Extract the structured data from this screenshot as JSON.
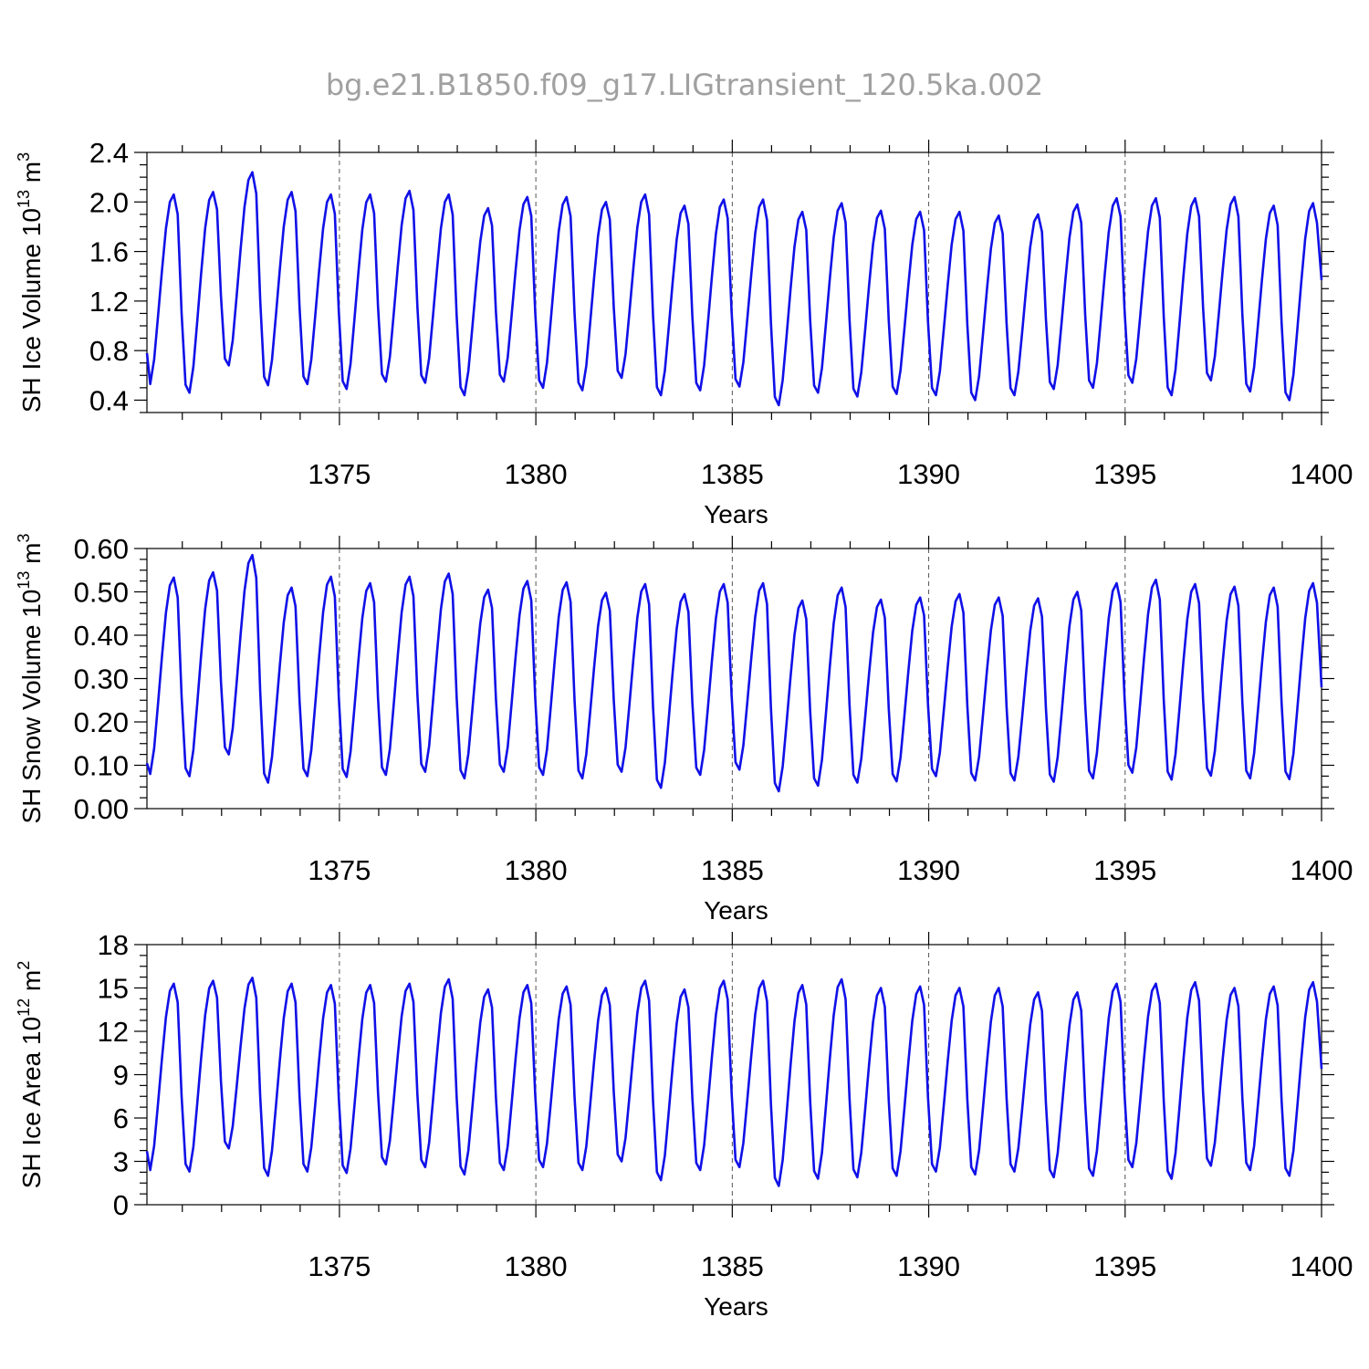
{
  "title": "bg.e21.B1850.f09_g17.LIGtransient_120.5ka.002",
  "series_color": "#1010e8",
  "chart_data": [
    {
      "type": "line",
      "ylabel_main": "SH Ice Volume 10",
      "ylabel_exp": "13",
      "ylabel_unit": " m",
      "ylabel_unit_exp": "3",
      "xlabel": "Years",
      "xlim": [
        1370.1,
        1400.0
      ],
      "ylim": [
        0.3,
        2.4
      ],
      "yticks": [
        0.4,
        0.8,
        1.2,
        1.6,
        2.0,
        2.4
      ],
      "ytick_labels": [
        "0.4",
        "0.8",
        "1.2",
        "1.6",
        "2.0",
        "2.4"
      ],
      "xticks": [
        1375,
        1380,
        1385,
        1390,
        1395,
        1400
      ],
      "xtick_labels": [
        "1375",
        "1380",
        "1385",
        "1390",
        "1395",
        "1400"
      ],
      "grid_x": [
        1375,
        1380,
        1385,
        1390,
        1395
      ],
      "start_value": 0.78,
      "end_value": 1.37,
      "maxima": [
        2.06,
        2.08,
        2.24,
        2.08,
        2.06,
        2.06,
        2.09,
        2.06,
        1.95,
        2.04,
        2.04,
        2.0,
        2.06,
        1.97,
        2.02,
        2.02,
        1.92,
        1.99,
        1.93,
        1.92,
        1.92,
        1.89,
        1.9,
        1.98,
        2.03,
        2.03,
        2.03,
        2.04,
        1.97,
        1.99
      ],
      "minima": [
        0.53,
        0.46,
        0.68,
        0.52,
        0.53,
        0.49,
        0.55,
        0.54,
        0.44,
        0.55,
        0.5,
        0.48,
        0.58,
        0.44,
        0.48,
        0.51,
        0.36,
        0.46,
        0.43,
        0.45,
        0.44,
        0.4,
        0.44,
        0.49,
        0.5,
        0.54,
        0.44,
        0.56,
        0.47,
        0.4
      ]
    },
    {
      "type": "line",
      "ylabel_main": "SH Snow Volume 10",
      "ylabel_exp": "13",
      "ylabel_unit": " m",
      "ylabel_unit_exp": "3",
      "xlabel": "Years",
      "xlim": [
        1370.1,
        1400.0
      ],
      "ylim": [
        0.0,
        0.6
      ],
      "yticks": [
        0.0,
        0.1,
        0.2,
        0.3,
        0.4,
        0.5,
        0.6
      ],
      "ytick_labels": [
        "0.00",
        "0.10",
        "0.20",
        "0.30",
        "0.40",
        "0.50",
        "0.60"
      ],
      "xticks": [
        1375,
        1380,
        1385,
        1390,
        1395,
        1400
      ],
      "xtick_labels": [
        "1375",
        "1380",
        "1385",
        "1390",
        "1395",
        "1400"
      ],
      "grid_x": [
        1375,
        1380,
        1385,
        1390,
        1395
      ],
      "start_value": 0.105,
      "end_value": 0.28,
      "maxima": [
        0.533,
        0.545,
        0.585,
        0.51,
        0.535,
        0.52,
        0.535,
        0.542,
        0.505,
        0.525,
        0.522,
        0.498,
        0.518,
        0.495,
        0.518,
        0.52,
        0.48,
        0.51,
        0.482,
        0.487,
        0.495,
        0.487,
        0.485,
        0.5,
        0.52,
        0.528,
        0.518,
        0.512,
        0.51,
        0.52
      ],
      "minima": [
        0.08,
        0.075,
        0.125,
        0.06,
        0.075,
        0.073,
        0.078,
        0.085,
        0.07,
        0.085,
        0.078,
        0.07,
        0.085,
        0.048,
        0.078,
        0.09,
        0.04,
        0.053,
        0.06,
        0.063,
        0.075,
        0.065,
        0.065,
        0.062,
        0.07,
        0.083,
        0.067,
        0.076,
        0.07,
        0.068
      ]
    },
    {
      "type": "line",
      "ylabel_main": "SH Ice Area 10",
      "ylabel_exp": "12",
      "ylabel_unit": " m",
      "ylabel_unit_exp": "2",
      "xlabel": "Years",
      "xlim": [
        1370.1,
        1400.0
      ],
      "ylim": [
        0,
        18
      ],
      "yticks": [
        0,
        3,
        6,
        9,
        12,
        15,
        18
      ],
      "ytick_labels": [
        "0",
        "3",
        "6",
        "9",
        "12",
        "15",
        "18"
      ],
      "xticks": [
        1375,
        1380,
        1385,
        1390,
        1395,
        1400
      ],
      "xtick_labels": [
        "1375",
        "1380",
        "1385",
        "1390",
        "1395",
        "1400"
      ],
      "grid_x": [
        1375,
        1380,
        1385,
        1390,
        1395
      ],
      "start_value": 3.7,
      "end_value": 9.4,
      "maxima": [
        15.3,
        15.5,
        15.7,
        15.3,
        15.2,
        15.2,
        15.3,
        15.6,
        14.9,
        15.2,
        15.1,
        15.0,
        15.5,
        14.9,
        15.5,
        15.5,
        15.2,
        15.6,
        15.0,
        15.1,
        15.0,
        15.0,
        14.7,
        14.7,
        15.3,
        15.3,
        15.4,
        15.0,
        15.1,
        15.4
      ],
      "minima": [
        2.4,
        2.3,
        3.9,
        2.0,
        2.3,
        2.2,
        2.8,
        2.6,
        2.1,
        2.4,
        2.6,
        2.4,
        3.0,
        1.7,
        2.4,
        2.6,
        1.3,
        1.8,
        1.9,
        2.0,
        2.3,
        2.1,
        2.3,
        1.9,
        2.0,
        2.6,
        1.8,
        2.7,
        2.4,
        2.0
      ]
    }
  ]
}
